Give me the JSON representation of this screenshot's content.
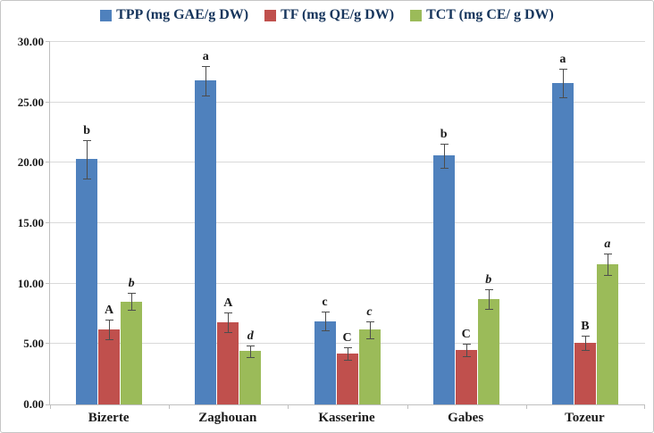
{
  "chart_data": {
    "type": "bar",
    "title": "",
    "xlabel": "",
    "ylabel": "",
    "categories": [
      "Bizerte",
      "Zaghouan",
      "Kasserine",
      "Gabes",
      "Tozeur"
    ],
    "series": [
      {
        "name": "TPP (mg GAE/g DW)",
        "color": "#4f81bd",
        "values": [
          20.3,
          26.8,
          6.9,
          20.6,
          26.6
        ],
        "errors": [
          1.6,
          1.2,
          0.8,
          1.0,
          1.2
        ],
        "letters": [
          "b",
          "a",
          "c",
          "b",
          "a"
        ],
        "letter_style": "normal"
      },
      {
        "name": "TF (mg QE/g DW)",
        "color": "#c0504d",
        "values": [
          6.2,
          6.8,
          4.2,
          4.5,
          5.1
        ],
        "errors": [
          0.8,
          0.8,
          0.5,
          0.5,
          0.6
        ],
        "letters": [
          "A",
          "A",
          "C",
          "C",
          "B"
        ],
        "letter_style": "normal"
      },
      {
        "name": "TCT (mg CE/ g DW)",
        "color": "#9bbb59",
        "values": [
          8.5,
          4.4,
          6.2,
          8.7,
          11.6
        ],
        "errors": [
          0.7,
          0.5,
          0.7,
          0.8,
          0.9
        ],
        "letters": [
          "b",
          "d",
          "c",
          "b",
          "a"
        ],
        "letter_style": "italic"
      }
    ],
    "ylim": [
      0,
      30
    ],
    "ytick_step": 5,
    "ytick_labels": [
      "0.00",
      "5.00",
      "10.00",
      "15.00",
      "20.00",
      "25.00",
      "30.00"
    ],
    "grid": true,
    "legend_position": "top"
  }
}
